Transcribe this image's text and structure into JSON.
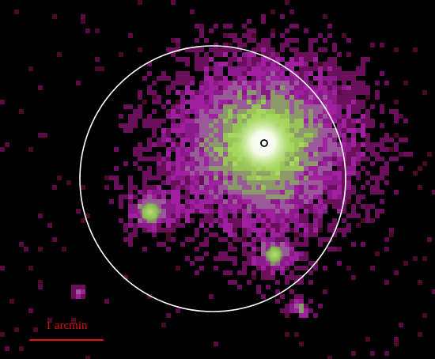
{
  "scale_bar": {
    "label": "1 arcmin"
  }
}
